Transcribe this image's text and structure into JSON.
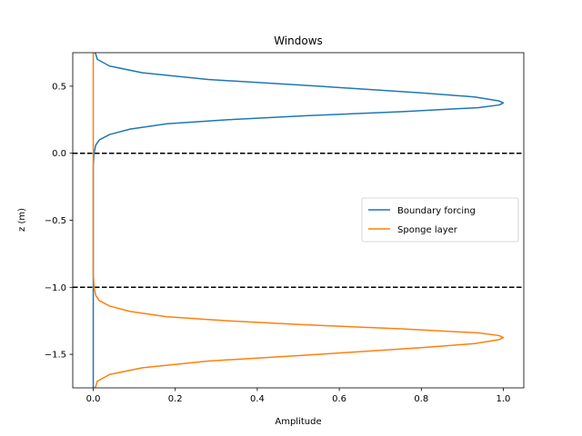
{
  "chart_data": {
    "type": "line",
    "title": "Windows",
    "xlabel": "Amplitude",
    "ylabel": "z (m)",
    "xlim": [
      -0.05,
      1.05
    ],
    "ylim": [
      -1.75,
      0.75
    ],
    "xticks": [
      {
        "value": 0.0,
        "label": "0.0"
      },
      {
        "value": 0.2,
        "label": "0.2"
      },
      {
        "value": 0.4,
        "label": "0.4"
      },
      {
        "value": 0.6,
        "label": "0.6"
      },
      {
        "value": 0.8,
        "label": "0.8"
      },
      {
        "value": 1.0,
        "label": "1.0"
      }
    ],
    "yticks": [
      {
        "value": 0.5,
        "label": "0.5"
      },
      {
        "value": 0.0,
        "label": "0.0"
      },
      {
        "value": -0.5,
        "label": "−0.5"
      },
      {
        "value": -1.0,
        "label": "−1.0"
      },
      {
        "value": -1.5,
        "label": "−1.5"
      }
    ],
    "hlines": [
      {
        "y": 0.0,
        "color": "#000000",
        "style": "dashed"
      },
      {
        "y": -1.0,
        "color": "#000000",
        "style": "dashed"
      }
    ],
    "legend": {
      "placement": "center-right"
    },
    "grid": false,
    "series": [
      {
        "name": "Boundary forcing",
        "color": "#1f77b4",
        "points": [
          [
            0.005,
            0.75
          ],
          [
            0.01,
            0.7
          ],
          [
            0.04,
            0.65
          ],
          [
            0.12,
            0.6
          ],
          [
            0.28,
            0.55
          ],
          [
            0.55,
            0.5
          ],
          [
            0.8,
            0.45
          ],
          [
            0.93,
            0.42
          ],
          [
            0.99,
            0.39
          ],
          [
            1.0,
            0.375
          ],
          [
            0.99,
            0.36
          ],
          [
            0.94,
            0.34
          ],
          [
            0.75,
            0.31
          ],
          [
            0.52,
            0.28
          ],
          [
            0.33,
            0.25
          ],
          [
            0.18,
            0.22
          ],
          [
            0.09,
            0.18
          ],
          [
            0.04,
            0.14
          ],
          [
            0.015,
            0.1
          ],
          [
            0.006,
            0.06
          ],
          [
            0.002,
            0.0
          ],
          [
            0.0,
            -0.1
          ],
          [
            0.0,
            -1.75
          ]
        ]
      },
      {
        "name": "Sponge layer",
        "color": "#ff7f0e",
        "points": [
          [
            0.0,
            0.75
          ],
          [
            0.0,
            -0.9
          ],
          [
            0.002,
            -1.0
          ],
          [
            0.006,
            -1.06
          ],
          [
            0.015,
            -1.1
          ],
          [
            0.04,
            -1.14
          ],
          [
            0.09,
            -1.18
          ],
          [
            0.18,
            -1.22
          ],
          [
            0.33,
            -1.25
          ],
          [
            0.52,
            -1.28
          ],
          [
            0.75,
            -1.31
          ],
          [
            0.94,
            -1.34
          ],
          [
            0.99,
            -1.36
          ],
          [
            1.0,
            -1.375
          ],
          [
            0.99,
            -1.39
          ],
          [
            0.93,
            -1.42
          ],
          [
            0.8,
            -1.45
          ],
          [
            0.55,
            -1.5
          ],
          [
            0.28,
            -1.55
          ],
          [
            0.12,
            -1.6
          ],
          [
            0.04,
            -1.65
          ],
          [
            0.01,
            -1.7
          ],
          [
            0.005,
            -1.75
          ]
        ]
      }
    ]
  }
}
